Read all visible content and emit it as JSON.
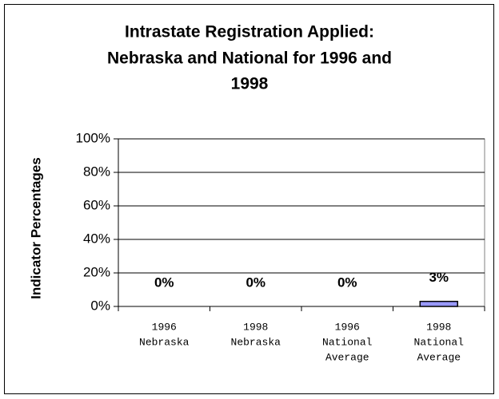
{
  "chart_data": {
    "type": "bar",
    "title": [
      "Intrastate Registration Applied:",
      "Nebraska and National for 1996 and",
      "1998"
    ],
    "y_label": "Indicator Percentages",
    "categories": [
      [
        "1996",
        "Nebraska"
      ],
      [
        "1998",
        "Nebraska"
      ],
      [
        "1996",
        "National",
        "Average"
      ],
      [
        "1998",
        "National",
        "Average"
      ]
    ],
    "values": [
      0,
      0,
      0,
      3
    ],
    "value_labels": [
      "0%",
      "0%",
      "0%",
      "3%"
    ],
    "color": "#9999ff",
    "ylim": [
      0,
      100
    ],
    "yticks": [
      {
        "value": 0,
        "label": "0%"
      },
      {
        "value": 20,
        "label": "20%"
      },
      {
        "value": 40,
        "label": "40%"
      },
      {
        "value": 60,
        "label": "60%"
      },
      {
        "value": 80,
        "label": "80%"
      },
      {
        "value": 100,
        "label": "100%"
      }
    ],
    "grid": true
  }
}
